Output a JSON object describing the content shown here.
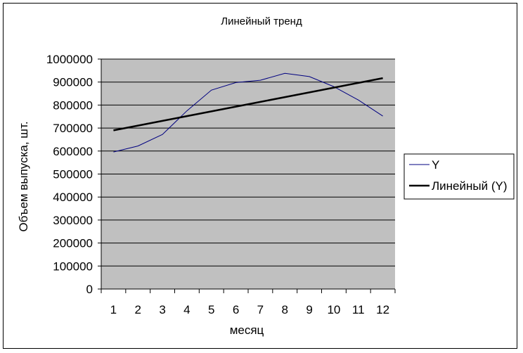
{
  "chart_data": {
    "type": "line",
    "title": "Линейный тренд",
    "xlabel": "месяц",
    "ylabel": "Объем выпуска, шт.",
    "categories": [
      "1",
      "2",
      "3",
      "4",
      "5",
      "6",
      "7",
      "8",
      "9",
      "10",
      "11",
      "12"
    ],
    "ylim": [
      0,
      1000000
    ],
    "yticks": [
      "0",
      "100000",
      "200000",
      "300000",
      "400000",
      "500000",
      "600000",
      "700000",
      "800000",
      "900000",
      "1000000"
    ],
    "grid": true,
    "legend_position": "right",
    "plot_background": "#c0c0c0",
    "series": [
      {
        "name": "Y",
        "color": "#000080",
        "values": [
          596000,
          622000,
          672000,
          775000,
          865000,
          898000,
          908000,
          938000,
          924000,
          880000,
          822000,
          752000
        ]
      },
      {
        "name": "Линейный (Y)",
        "color": "#000000",
        "trend": true,
        "values": [
          690000,
          710636,
          731273,
          751909,
          772545,
          793182,
          813818,
          834455,
          855091,
          875727,
          896364,
          917000
        ]
      }
    ]
  }
}
